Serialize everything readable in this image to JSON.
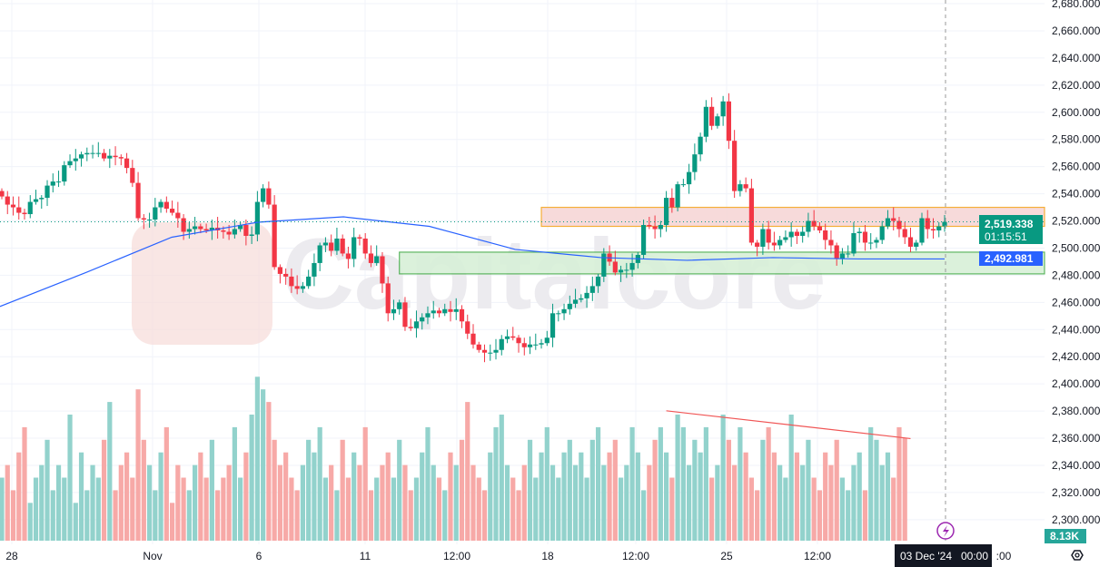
{
  "chart_data": {
    "type": "candlestick",
    "watermark": "Capitalcore",
    "ylim": [
      2300,
      2680
    ],
    "y_ticks": [
      "2,680.000",
      "2,660.000",
      "2,640.000",
      "2,620.000",
      "2,600.000",
      "2,580.000",
      "2,560.000",
      "2,540.000",
      "2,520.000",
      "2,500.000",
      "2,480.000",
      "2,460.000",
      "2,440.000",
      "2,420.000",
      "2,400.000",
      "2,380.000",
      "2,360.000",
      "2,340.000",
      "2,320.000",
      "2,300.000"
    ],
    "x_ticks": [
      "28",
      "Nov",
      "6",
      "11",
      "12:00",
      "18",
      "12:00",
      "25",
      "12:00",
      ":00"
    ],
    "closes": [
      2538,
      2532,
      2530,
      2526,
      2525,
      2534,
      2536,
      2537,
      2546,
      2549,
      2549,
      2561,
      2564,
      2566,
      2569,
      2570,
      2570,
      2570,
      2566,
      2568,
      2567,
      2566,
      2559,
      2548,
      2522,
      2521,
      2521,
      2530,
      2534,
      2529,
      2526,
      2522,
      2512,
      2514,
      2516,
      2514,
      2513,
      2515,
      2513,
      2512,
      2510,
      2514,
      2517,
      2509,
      2510,
      2534,
      2544,
      2532,
      2486,
      2481,
      2479,
      2472,
      2470,
      2472,
      2479,
      2489,
      2502,
      2504,
      2498,
      2507,
      2496,
      2492,
      2508,
      2507,
      2496,
      2489,
      2494,
      2474,
      2452,
      2455,
      2460,
      2442,
      2441,
      2446,
      2449,
      2452,
      2454,
      2452,
      2455,
      2453,
      2455,
      2446,
      2437,
      2429,
      2425,
      2423,
      2423,
      2425,
      2433,
      2435,
      2434,
      2430,
      2427,
      2429,
      2429,
      2430,
      2434,
      2452,
      2452,
      2455,
      2459,
      2462,
      2463,
      2467,
      2472,
      2479,
      2496,
      2490,
      2482,
      2484,
      2484,
      2489,
      2495,
      2517,
      2516,
      2514,
      2517,
      2537,
      2530,
      2547,
      2547,
      2556,
      2569,
      2582,
      2604,
      2590,
      2597,
      2608,
      2579,
      2542,
      2547,
      2544,
      2504,
      2501,
      2514,
      2504,
      2502,
      2506,
      2508,
      2512,
      2509,
      2512,
      2520,
      2516,
      2513,
      2506,
      2502,
      2492,
      2496,
      2496,
      2511,
      2512,
      2504,
      2504,
      2506,
      2516,
      2522,
      2520,
      2514,
      2508,
      2501,
      2504,
      2522,
      2514,
      2513,
      2516,
      2519.338
    ],
    "volumes_k": [
      5,
      6,
      4,
      7,
      9,
      3,
      5,
      6,
      8,
      4,
      6,
      5,
      10,
      3,
      7,
      4,
      6,
      5,
      8,
      11,
      4,
      6,
      7,
      5,
      12,
      8,
      6,
      4,
      7,
      9,
      3,
      6,
      5,
      4,
      6,
      7,
      5,
      8,
      4,
      5,
      6,
      9,
      5,
      7,
      10,
      13,
      12,
      11,
      8,
      6,
      7,
      5,
      4,
      6,
      8,
      7,
      9,
      5,
      6,
      4,
      8,
      5,
      7,
      6,
      9,
      4,
      5,
      6,
      7,
      5,
      8,
      6,
      4,
      5,
      7,
      9,
      6,
      5,
      4,
      7,
      6,
      8,
      11,
      6,
      5,
      4,
      7,
      9,
      10,
      6,
      5,
      4,
      6,
      8,
      5,
      7,
      9,
      6,
      5,
      7,
      8,
      6,
      7,
      5,
      8,
      9,
      6,
      7,
      8,
      5,
      6,
      9,
      7,
      4,
      6,
      8,
      9,
      7,
      5,
      10,
      9,
      6,
      8,
      7,
      9,
      5,
      6,
      10,
      8,
      6,
      9,
      7,
      5,
      4,
      8,
      9,
      7,
      6,
      5,
      10,
      7,
      6,
      8,
      5,
      4,
      7,
      6,
      8,
      5,
      4,
      6,
      7,
      4,
      9,
      8,
      6,
      7,
      5,
      9,
      8.13
    ],
    "ma_line": [
      2457,
      2482,
      2508,
      2519,
      2523,
      2516,
      2499,
      2493,
      2491,
      2493,
      2492,
      2492
    ],
    "zones": [
      {
        "name": "resistance",
        "from": 2516,
        "to": 2530,
        "start_index": 95,
        "color": "#f7d7d7",
        "border": "#f5a623"
      },
      {
        "name": "support",
        "from": 2481,
        "to": 2497,
        "start_index": 70,
        "color": "#d8f0d8",
        "border": "#4caf50"
      }
    ],
    "volume_trendline": {
      "from_index": 117,
      "to_index": 160,
      "from_k": 10.3,
      "to_k": 8.1,
      "color": "#f05555"
    },
    "last_price": "2,519.338",
    "countdown": "01:15:51",
    "ma_value": "2,492.981",
    "volume_label": "8.13K",
    "crosshair_time": "03 Dec '24   00:00",
    "colors": {
      "up": "#089981",
      "down": "#f23645",
      "vol_up": "#92d2cc",
      "vol_down": "#f7a9a7",
      "ma": "#2962ff"
    }
  }
}
